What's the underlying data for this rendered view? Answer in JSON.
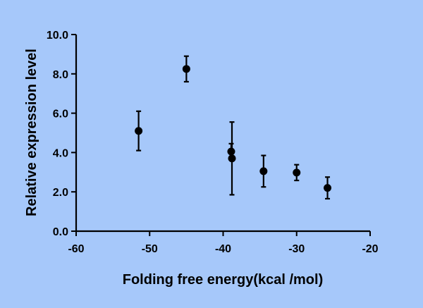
{
  "chart_data": {
    "type": "scatter",
    "title": "",
    "xlabel": "Folding free energy(kcal /mol)",
    "ylabel": "Relative expression level",
    "xlim": [
      -60,
      -20
    ],
    "ylim": [
      0,
      10
    ],
    "xticks": [
      -60,
      -50,
      -40,
      -30,
      -20
    ],
    "yticks": [
      0,
      2,
      4,
      6,
      8,
      10
    ],
    "xtick_labels": [
      "-60",
      "-50",
      "-40",
      "-30",
      "-20"
    ],
    "ytick_labels": [
      "0.0",
      "2.0",
      "4.0",
      "6.0",
      "8.0",
      "10.0"
    ],
    "grid": false,
    "points": [
      {
        "x": -51.5,
        "y": 5.1,
        "err": 1.0
      },
      {
        "x": -45.0,
        "y": 8.25,
        "err": 0.65
      },
      {
        "x": -38.9,
        "y": 4.05,
        "err": 0.4
      },
      {
        "x": -38.8,
        "y": 3.7,
        "err": 1.85
      },
      {
        "x": -34.5,
        "y": 3.05,
        "err": 0.8
      },
      {
        "x": -30.0,
        "y": 2.98,
        "err": 0.4
      },
      {
        "x": -25.8,
        "y": 2.2,
        "err": 0.55
      }
    ],
    "colors": {
      "marker": "#000000",
      "background": "#a6c8fa"
    }
  }
}
